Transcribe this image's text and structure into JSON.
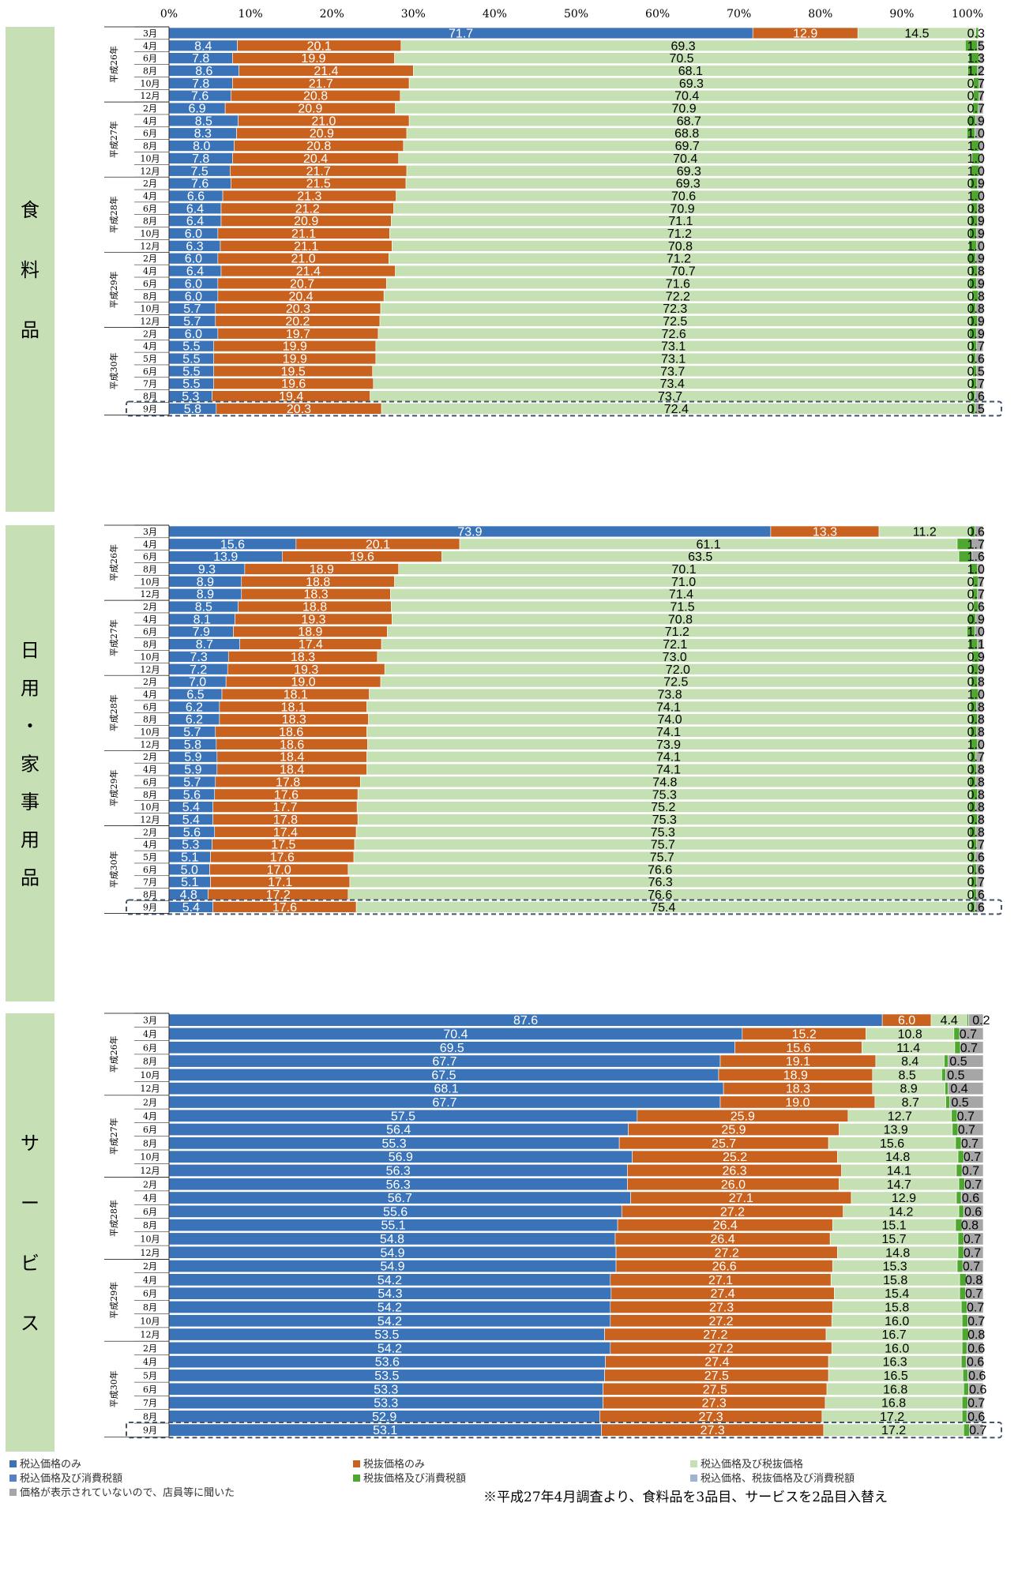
{
  "chart_data": {
    "type": "bar",
    "orientation": "horizontal",
    "stacked": "100%",
    "x_ticks": [
      "0%",
      "10%",
      "20%",
      "30%",
      "40%",
      "50%",
      "60%",
      "70%",
      "80%",
      "90%",
      "100%"
    ],
    "colors": {
      "tax_incl": "#3a73b8",
      "tax_excl": "#c9621e",
      "both": "#c5e0b3",
      "tax_incl_and_tax": "#5b7fc3",
      "excl_and_tax": "#4ea72e",
      "all_three": "#a0b4d0",
      "not_displayed": "#a6a6a6",
      "section_bg": "#c6dfb4",
      "highlight": "#44546a"
    },
    "legend": [
      {
        "label": "税込価格のみ",
        "color_key": "tax_incl"
      },
      {
        "label": "税抜価格のみ",
        "color_key": "tax_excl"
      },
      {
        "label": "税込価格及び税抜価格",
        "color_key": "both"
      },
      {
        "label": "税込価格及び消費税額",
        "color_key": "tax_incl_and_tax"
      },
      {
        "label": "税抜価格及び消費税額",
        "color_key": "excl_and_tax"
      },
      {
        "label": "税込価格、税抜価格及び消費税額",
        "color_key": "all_three"
      },
      {
        "label": "価格が表示されていないので、店員等に聞いた",
        "color_key": "not_displayed"
      }
    ],
    "note": "※平成27年4月調査より、食料品を3品目、サービスを2品目入替え",
    "sections": [
      {
        "label": "食料品",
        "chars": [
          "食",
          "料",
          "品"
        ],
        "groups": [
          {
            "year": "平成26年",
            "months": [
              "3月",
              "4月",
              "6月",
              "8月",
              "10月",
              "12月"
            ]
          },
          {
            "year": "平成27年",
            "months": [
              "2月",
              "4月",
              "6月",
              "8月",
              "10月",
              "12月"
            ]
          },
          {
            "year": "平成28年",
            "months": [
              "2月",
              "4月",
              "6月",
              "8月",
              "10月",
              "12月"
            ]
          },
          {
            "year": "平成29年",
            "months": [
              "2月",
              "4月",
              "6月",
              "8月",
              "10月",
              "12月"
            ]
          },
          {
            "year": "平成30年",
            "months": [
              "2月",
              "4月",
              "5月",
              "6月",
              "7月",
              "8月",
              "9月"
            ]
          }
        ],
        "rows": [
          [
            71.7,
            12.9,
            14.5,
            0.3,
            0.0
          ],
          [
            8.4,
            20.1,
            69.3,
            1.5,
            0.7
          ],
          [
            7.8,
            19.9,
            70.5,
            1.3,
            0.5
          ],
          [
            8.6,
            21.4,
            68.1,
            1.2,
            0.7
          ],
          [
            7.8,
            21.7,
            69.3,
            0.7,
            0.5
          ],
          [
            7.6,
            20.8,
            70.4,
            0.7,
            0.5
          ],
          [
            6.9,
            20.9,
            70.9,
            0.7,
            0.6
          ],
          [
            8.5,
            21.0,
            68.7,
            0.9,
            0.9
          ],
          [
            8.3,
            20.9,
            68.8,
            1.0,
            1.0
          ],
          [
            8.0,
            20.8,
            69.7,
            1.0,
            0.5
          ],
          [
            7.8,
            20.4,
            70.4,
            1.0,
            0.4
          ],
          [
            7.5,
            21.7,
            69.3,
            1.0,
            0.5
          ],
          [
            7.6,
            21.5,
            69.3,
            0.9,
            0.7
          ],
          [
            6.6,
            21.3,
            70.6,
            1.0,
            0.5
          ],
          [
            6.4,
            21.2,
            70.9,
            0.8,
            0.7
          ],
          [
            6.4,
            20.9,
            71.1,
            0.9,
            0.7
          ],
          [
            6.0,
            21.1,
            71.2,
            0.9,
            0.8
          ],
          [
            6.3,
            21.1,
            70.8,
            1.0,
            0.8
          ],
          [
            6.0,
            21.0,
            71.2,
            0.9,
            0.9
          ],
          [
            6.4,
            21.4,
            70.7,
            0.8,
            0.7
          ],
          [
            6.0,
            20.7,
            71.6,
            0.9,
            0.8
          ],
          [
            6.0,
            20.4,
            72.2,
            0.8,
            0.6
          ],
          [
            5.7,
            20.3,
            72.3,
            0.8,
            0.9
          ],
          [
            5.7,
            20.2,
            72.5,
            0.9,
            0.7
          ],
          [
            6.0,
            19.7,
            72.6,
            0.9,
            0.8
          ],
          [
            5.5,
            19.9,
            73.1,
            0.7,
            0.8
          ],
          [
            5.5,
            19.9,
            73.1,
            0.6,
            0.9
          ],
          [
            5.5,
            19.5,
            73.7,
            0.5,
            0.8
          ],
          [
            5.5,
            19.6,
            73.4,
            0.7,
            0.8
          ],
          [
            5.3,
            19.4,
            73.7,
            0.6,
            1.0
          ],
          [
            5.8,
            20.3,
            72.4,
            0.5,
            1.0
          ]
        ]
      },
      {
        "label": "日用・家事用品",
        "chars": [
          "日",
          "用",
          "・",
          "家",
          "事",
          "用",
          "品"
        ],
        "groups": [
          {
            "year": "平成26年",
            "months": [
              "3月",
              "4月",
              "6月",
              "8月",
              "10月",
              "12月"
            ]
          },
          {
            "year": "平成27年",
            "months": [
              "2月",
              "4月",
              "6月",
              "8月",
              "10月",
              "12月"
            ]
          },
          {
            "year": "平成28年",
            "months": [
              "2月",
              "4月",
              "6月",
              "8月",
              "10月",
              "12月"
            ]
          },
          {
            "year": "平成29年",
            "months": [
              "2月",
              "4月",
              "6月",
              "8月",
              "10月",
              "12月"
            ]
          },
          {
            "year": "平成30年",
            "months": [
              "2月",
              "4月",
              "5月",
              "6月",
              "7月",
              "8月",
              "9月"
            ]
          }
        ],
        "rows": [
          [
            73.9,
            13.3,
            11.2,
            0.6,
            1.0
          ],
          [
            15.6,
            20.1,
            61.1,
            1.7,
            1.5
          ],
          [
            13.9,
            19.6,
            63.5,
            1.6,
            1.4
          ],
          [
            9.3,
            18.9,
            70.1,
            1.0,
            0.7
          ],
          [
            8.9,
            18.8,
            71.0,
            0.7,
            0.6
          ],
          [
            8.9,
            18.3,
            71.4,
            0.7,
            0.7
          ],
          [
            8.5,
            18.8,
            71.5,
            0.6,
            0.6
          ],
          [
            8.1,
            19.3,
            70.8,
            0.9,
            0.9
          ],
          [
            7.9,
            18.9,
            71.2,
            1.0,
            1.0
          ],
          [
            8.7,
            17.4,
            72.1,
            1.1,
            0.7
          ],
          [
            7.3,
            18.3,
            73.0,
            0.9,
            0.5
          ],
          [
            7.2,
            19.3,
            72.0,
            0.9,
            0.6
          ],
          [
            7.0,
            19.0,
            72.5,
            0.8,
            0.7
          ],
          [
            6.5,
            18.1,
            73.8,
            1.0,
            0.6
          ],
          [
            6.2,
            18.1,
            74.1,
            0.8,
            0.8
          ],
          [
            6.2,
            18.3,
            74.0,
            0.8,
            0.7
          ],
          [
            5.7,
            18.6,
            74.1,
            0.8,
            0.8
          ],
          [
            5.8,
            18.6,
            73.9,
            1.0,
            0.7
          ],
          [
            5.9,
            18.4,
            74.1,
            0.7,
            0.9
          ],
          [
            5.9,
            18.4,
            74.1,
            0.8,
            0.8
          ],
          [
            5.7,
            17.8,
            74.8,
            0.8,
            0.9
          ],
          [
            5.6,
            17.6,
            75.3,
            0.8,
            0.7
          ],
          [
            5.4,
            17.7,
            75.2,
            0.8,
            0.9
          ],
          [
            5.4,
            17.8,
            75.3,
            0.8,
            0.7
          ],
          [
            5.6,
            17.4,
            75.3,
            0.8,
            0.9
          ],
          [
            5.3,
            17.5,
            75.7,
            0.7,
            0.8
          ],
          [
            5.1,
            17.6,
            75.7,
            0.6,
            1.0
          ],
          [
            5.0,
            17.0,
            76.6,
            0.6,
            0.8
          ],
          [
            5.1,
            17.1,
            76.3,
            0.7,
            0.8
          ],
          [
            4.8,
            17.2,
            76.6,
            0.6,
            0.8
          ],
          [
            5.4,
            17.6,
            75.4,
            0.6,
            1.0
          ]
        ]
      },
      {
        "label": "サービス",
        "chars": [
          "サ",
          "ー",
          "ビ",
          "ス"
        ],
        "groups": [
          {
            "year": "平成26年",
            "months": [
              "3月",
              "4月",
              "6月",
              "8月",
              "10月",
              "12月"
            ]
          },
          {
            "year": "平成27年",
            "months": [
              "2月",
              "4月",
              "6月",
              "8月",
              "10月",
              "12月"
            ]
          },
          {
            "year": "平成28年",
            "months": [
              "2月",
              "4月",
              "6月",
              "8月",
              "10月",
              "12月"
            ]
          },
          {
            "year": "平成29年",
            "months": [
              "2月",
              "4月",
              "6月",
              "8月",
              "10月",
              "12月"
            ]
          },
          {
            "year": "平成30年",
            "months": [
              "2月",
              "4月",
              "5月",
              "6月",
              "7月",
              "8月",
              "9月"
            ]
          }
        ],
        "rows": [
          [
            87.6,
            6.0,
            4.4,
            0.2,
            1.8
          ],
          [
            70.4,
            15.2,
            10.8,
            0.7,
            2.9
          ],
          [
            69.5,
            15.6,
            11.4,
            0.7,
            2.8
          ],
          [
            67.7,
            19.1,
            8.4,
            0.5,
            4.3
          ],
          [
            67.5,
            18.9,
            8.5,
            0.5,
            4.6
          ],
          [
            68.1,
            18.3,
            8.9,
            0.4,
            4.3
          ],
          [
            67.7,
            19.0,
            8.7,
            0.5,
            4.1
          ],
          [
            57.5,
            25.9,
            12.7,
            0.7,
            3.2
          ],
          [
            56.4,
            25.9,
            13.9,
            0.7,
            3.1
          ],
          [
            55.3,
            25.7,
            15.6,
            0.7,
            2.7
          ],
          [
            56.9,
            25.2,
            14.8,
            0.7,
            2.4
          ],
          [
            56.3,
            26.3,
            14.1,
            0.7,
            2.6
          ],
          [
            56.3,
            26.0,
            14.7,
            0.7,
            2.3
          ],
          [
            56.7,
            27.1,
            12.9,
            0.6,
            2.7
          ],
          [
            55.6,
            27.2,
            14.2,
            0.6,
            2.4
          ],
          [
            55.1,
            26.4,
            15.1,
            0.8,
            2.6
          ],
          [
            54.8,
            26.4,
            15.7,
            0.7,
            2.4
          ],
          [
            54.9,
            27.2,
            14.8,
            0.7,
            2.4
          ],
          [
            54.9,
            26.6,
            15.3,
            0.7,
            2.5
          ],
          [
            54.2,
            27.1,
            15.8,
            0.8,
            2.1
          ],
          [
            54.3,
            27.4,
            15.4,
            0.7,
            2.2
          ],
          [
            54.2,
            27.3,
            15.8,
            0.7,
            2.0
          ],
          [
            54.2,
            27.2,
            16.0,
            0.7,
            1.9
          ],
          [
            53.5,
            27.2,
            16.7,
            0.8,
            1.8
          ],
          [
            54.2,
            27.2,
            16.0,
            0.6,
            2.0
          ],
          [
            53.6,
            27.4,
            16.3,
            0.6,
            2.1
          ],
          [
            53.5,
            27.5,
            16.5,
            0.6,
            1.9
          ],
          [
            53.3,
            27.5,
            16.8,
            0.6,
            1.8
          ],
          [
            53.3,
            27.3,
            16.8,
            0.7,
            1.9
          ],
          [
            52.9,
            27.3,
            17.2,
            0.6,
            2.0
          ],
          [
            53.1,
            27.3,
            17.2,
            0.7,
            1.7
          ]
        ]
      }
    ]
  }
}
